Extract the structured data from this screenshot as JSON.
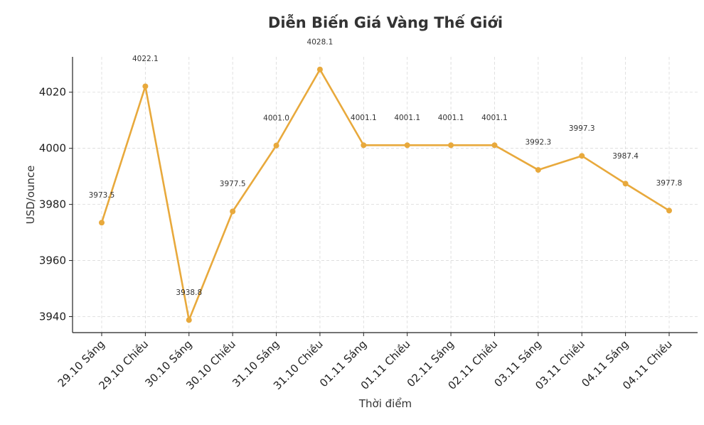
{
  "chart_data": {
    "type": "line",
    "title": "Diễn Biến Giá Vàng Thế Giới",
    "xlabel": "Thời điểm",
    "ylabel": "USD/ounce",
    "categories": [
      "29.10 Sáng",
      "29.10 Chiều",
      "30.10 Sáng",
      "30.10 Chiều",
      "31.10 Sáng",
      "31.10 Chiều",
      "01.11 Sáng",
      "01.11 Chiều",
      "02.11 Sáng",
      "02.11 Chiều",
      "03.11 Sáng",
      "03.11 Chiều",
      "04.11 Sáng",
      "04.11 Chiều"
    ],
    "values": [
      3973.5,
      4022.1,
      3938.8,
      3977.5,
      4001.0,
      4028.1,
      4001.1,
      4001.1,
      4001.1,
      4001.1,
      3992.3,
      3997.3,
      3987.4,
      3977.8
    ],
    "data_labels": [
      "3973.5",
      "4022.1",
      "3938.8",
      "3977.5",
      "4001.0",
      "4028.1",
      "4001.1",
      "4001.1",
      "4001.1",
      "4001.1",
      "3992.3",
      "3997.3",
      "3987.4",
      "3977.8"
    ],
    "ylim": [
      3934.3,
      4032.6
    ],
    "yticks": [
      3940,
      3960,
      3980,
      4000,
      4020
    ],
    "grid": true,
    "legend": "none",
    "colors": {
      "line": "#e8a93c",
      "marker": "#e8a93c"
    }
  }
}
